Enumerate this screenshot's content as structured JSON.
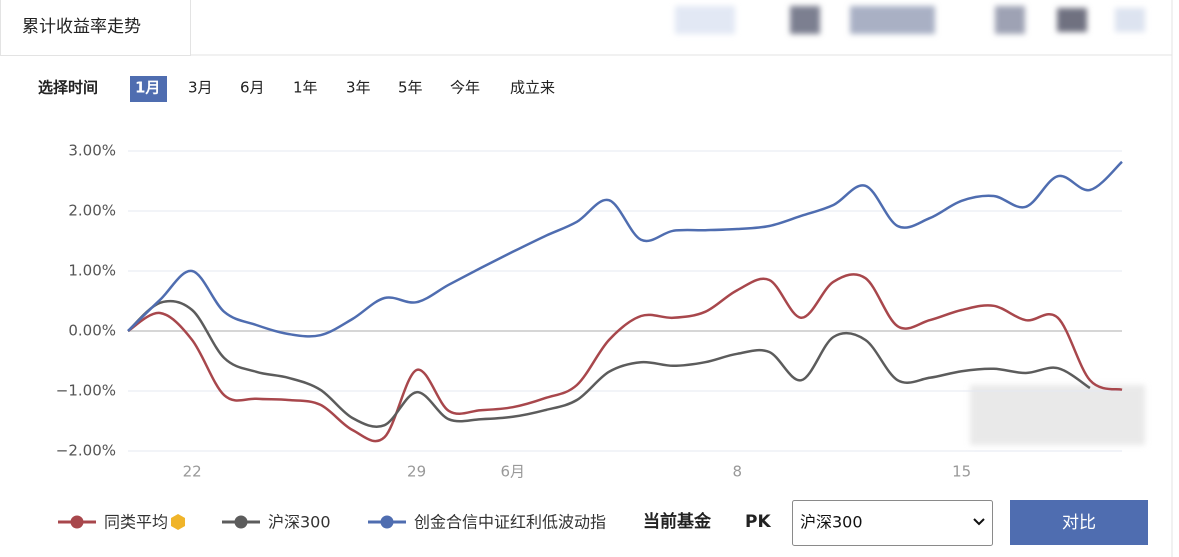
{
  "tab": "累计收益率走势",
  "time_selector": {
    "label": "选择时间",
    "options": [
      "1月",
      "3月",
      "6月",
      "1年",
      "3年",
      "5年",
      "今年",
      "成立来"
    ],
    "active": 0
  },
  "chart_data": {
    "type": "line",
    "categories": [
      null,
      null,
      "22",
      null,
      null,
      null,
      null,
      null,
      null,
      "29",
      null,
      null,
      "6月",
      null,
      null,
      null,
      null,
      null,
      null,
      "8",
      null,
      null,
      null,
      null,
      null,
      null,
      "15",
      null,
      null,
      null,
      null,
      null
    ],
    "series": [
      {
        "name": "同类平均",
        "color": "#a8474c",
        "values": [
          0,
          0.3,
          -0.15,
          -1.07,
          -1.13,
          -1.15,
          -1.23,
          -1.65,
          -1.77,
          -0.65,
          -1.33,
          -1.32,
          -1.27,
          -1.12,
          -0.9,
          -0.15,
          0.25,
          0.22,
          0.32,
          0.68,
          0.85,
          0.22,
          0.82,
          0.88,
          0.08,
          0.18,
          0.35,
          0.42,
          0.18,
          0.22,
          -0.82,
          -0.98
        ]
      },
      {
        "name": "沪深300",
        "color": "#5c5c5c",
        "values": [
          0,
          0.47,
          0.35,
          -0.45,
          -0.68,
          -0.78,
          -0.98,
          -1.45,
          -1.57,
          -1.02,
          -1.47,
          -1.47,
          -1.43,
          -1.32,
          -1.15,
          -0.68,
          -0.52,
          -0.58,
          -0.52,
          -0.38,
          -0.35,
          -0.82,
          -0.1,
          -0.15,
          -0.82,
          -0.78,
          -0.67,
          -0.63,
          -0.7,
          -0.62,
          -0.95,
          null
        ]
      },
      {
        "name": "创金合信中证红利低波动指",
        "color": "#4f6db0",
        "values": [
          0,
          0.52,
          1.0,
          0.32,
          0.1,
          -0.05,
          -0.07,
          0.2,
          0.55,
          0.48,
          0.77,
          1.05,
          1.32,
          1.58,
          1.82,
          2.18,
          1.52,
          1.67,
          1.68,
          1.7,
          1.75,
          1.92,
          2.1,
          2.42,
          1.75,
          1.88,
          2.17,
          2.25,
          2.07,
          2.58,
          2.35,
          2.82
        ]
      }
    ],
    "ylim": [
      -2,
      3
    ],
    "yticks": [
      {
        "value": 3,
        "label": "3.00%"
      },
      {
        "value": 2,
        "label": "2.00%"
      },
      {
        "value": 1,
        "label": "1.00%"
      },
      {
        "value": 0,
        "label": "0.00%"
      },
      {
        "value": -1,
        "label": "−1.00%"
      },
      {
        "value": -2,
        "label": "−2.00%"
      }
    ],
    "grid": true
  },
  "compare": {
    "label": "当前基金",
    "pk": "PK",
    "select": "沪深300",
    "button": "对比"
  }
}
